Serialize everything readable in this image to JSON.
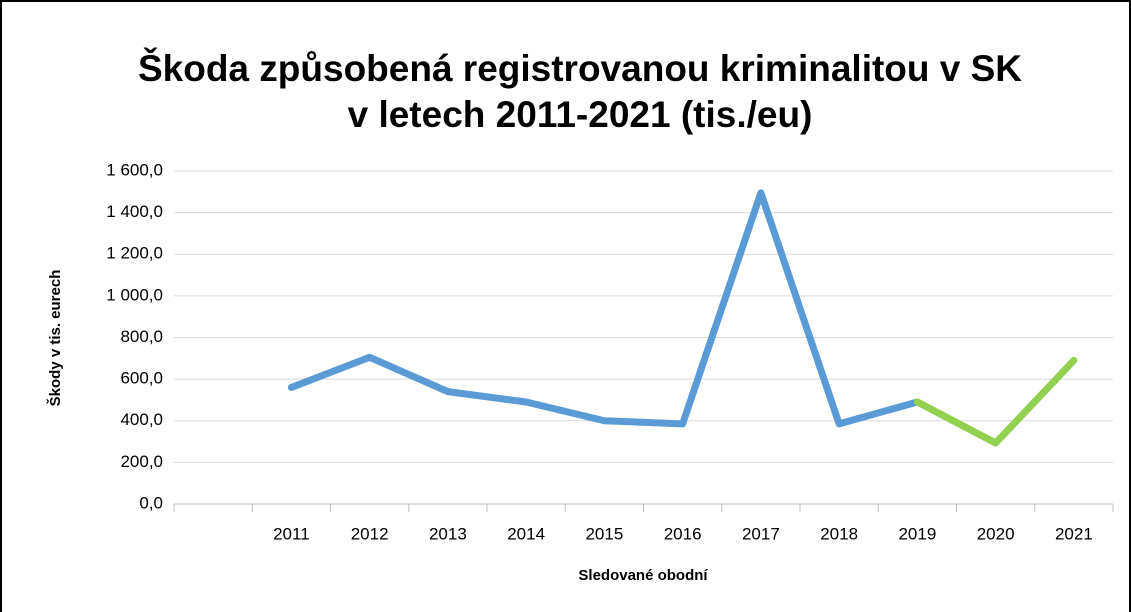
{
  "chart_data": {
    "type": "line",
    "title": [
      "Škoda způsobená registrovanou kriminalitou v SK",
      "v letech 2011-2021 (tis./eu)"
    ],
    "x_label": "Sledované obodní",
    "y_label": "Škody v tis. eurech",
    "categories": [
      null,
      "2011",
      "2012",
      "2013",
      "2014",
      "2015",
      "2016",
      "2017",
      "2018",
      "2019",
      "2020",
      "2021"
    ],
    "series": [
      {
        "color": "#5b9bd5",
        "values": [
          null,
          560,
          705,
          540,
          490,
          400,
          385,
          1495,
          385,
          490,
          null,
          null
        ]
      },
      {
        "color": "#92d050",
        "values": [
          null,
          null,
          null,
          null,
          null,
          null,
          null,
          null,
          null,
          490,
          293,
          690
        ]
      }
    ],
    "ylim": [
      0,
      1600
    ],
    "yticks": [
      {
        "value": 0,
        "label": "0,0"
      },
      {
        "value": 200,
        "label": "200,0"
      },
      {
        "value": 400,
        "label": "400,0"
      },
      {
        "value": 600,
        "label": "600,0"
      },
      {
        "value": 800,
        "label": "800,0"
      },
      {
        "value": 1000,
        "label": "1 000,0"
      },
      {
        "value": 1200,
        "label": "1 200,0"
      },
      {
        "value": 1400,
        "label": "1 400,0"
      },
      {
        "value": 1600,
        "label": "1 600,0"
      }
    ],
    "grid": true
  }
}
